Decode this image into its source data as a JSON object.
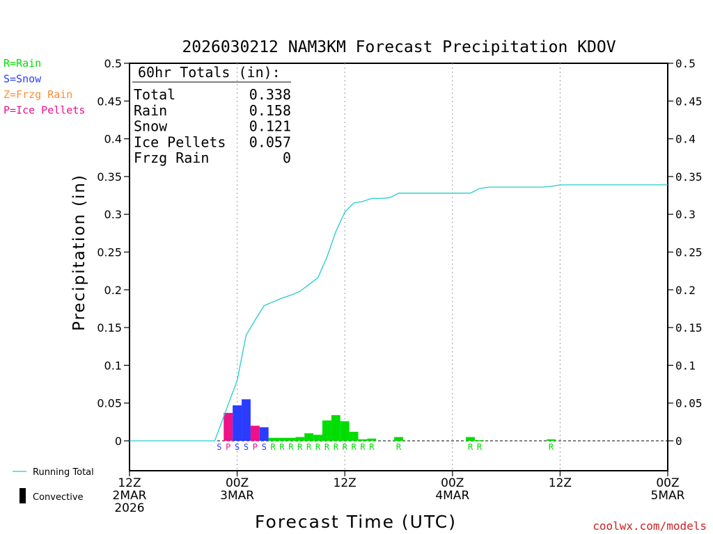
{
  "chart_data": {
    "type": "bar",
    "title": "2026030212 NAM3KM Forecast Precipitation KDOV",
    "xlabel": "Forecast Time (UTC)",
    "ylabel": "Precipitation (in)",
    "ylim": [
      -0.04,
      0.5
    ],
    "yticks": [
      0,
      0.05,
      0.1,
      0.15,
      0.2,
      0.25,
      0.3,
      0.35,
      0.4,
      0.45,
      0.5
    ],
    "ytick_labels": [
      "0",
      "0.05",
      "0.1",
      "0.15",
      "0.2",
      "0.25",
      "0.3",
      "0.35",
      "0.4",
      "0.45",
      "0.5"
    ],
    "xlim_hours": [
      0,
      60
    ],
    "xticks": [
      {
        "hour": 0,
        "lines": [
          "12Z",
          "2MAR",
          "2026"
        ]
      },
      {
        "hour": 12,
        "lines": [
          "00Z",
          "3MAR"
        ]
      },
      {
        "hour": 24,
        "lines": [
          "12Z"
        ]
      },
      {
        "hour": 36,
        "lines": [
          "00Z",
          "4MAR"
        ]
      },
      {
        "hour": 48,
        "lines": [
          "12Z"
        ]
      },
      {
        "hour": 60,
        "lines": [
          "00Z",
          "5MAR"
        ]
      }
    ],
    "grid_hours": [
      12,
      24,
      36,
      48
    ],
    "bar_width_hours": 1,
    "type_colors": {
      "R": "#00dd00",
      "S": "#2a3cff",
      "P": "#ee1188",
      "Z": "#ff8c33"
    },
    "bars": [
      {
        "hour": 11,
        "value": 0.037,
        "ptype": "P"
      },
      {
        "hour": 12,
        "value": 0.047,
        "ptype": "S"
      },
      {
        "hour": 13,
        "value": 0.055,
        "ptype": "S"
      },
      {
        "hour": 14,
        "value": 0.02,
        "ptype": "P"
      },
      {
        "hour": 15,
        "value": 0.018,
        "ptype": "S"
      },
      {
        "hour": 16,
        "value": 0.004,
        "ptype": "R"
      },
      {
        "hour": 17,
        "value": 0.004,
        "ptype": "R"
      },
      {
        "hour": 18,
        "value": 0.004,
        "ptype": "R"
      },
      {
        "hour": 19,
        "value": 0.005,
        "ptype": "R"
      },
      {
        "hour": 20,
        "value": 0.01,
        "ptype": "R"
      },
      {
        "hour": 21,
        "value": 0.008,
        "ptype": "R"
      },
      {
        "hour": 22,
        "value": 0.027,
        "ptype": "R"
      },
      {
        "hour": 23,
        "value": 0.034,
        "ptype": "R"
      },
      {
        "hour": 24,
        "value": 0.026,
        "ptype": "R"
      },
      {
        "hour": 25,
        "value": 0.012,
        "ptype": "R"
      },
      {
        "hour": 26,
        "value": 0.002,
        "ptype": "R"
      },
      {
        "hour": 27,
        "value": 0.003,
        "ptype": "R"
      },
      {
        "hour": 30,
        "value": 0.005,
        "ptype": "R"
      },
      {
        "hour": 38,
        "value": 0.005,
        "ptype": "R"
      },
      {
        "hour": 39,
        "value": 0.001,
        "ptype": "R"
      },
      {
        "hour": 47,
        "value": 0.002,
        "ptype": "R"
      }
    ],
    "ptype_markers": [
      {
        "hour": 10,
        "label": "S"
      },
      {
        "hour": 11,
        "label": "P"
      },
      {
        "hour": 12,
        "label": "S"
      },
      {
        "hour": 13,
        "label": "S"
      },
      {
        "hour": 14,
        "label": "P"
      },
      {
        "hour": 15,
        "label": "S"
      },
      {
        "hour": 16,
        "label": "R"
      },
      {
        "hour": 17,
        "label": "R"
      },
      {
        "hour": 18,
        "label": "R"
      },
      {
        "hour": 19,
        "label": "R"
      },
      {
        "hour": 20,
        "label": "R"
      },
      {
        "hour": 21,
        "label": "R"
      },
      {
        "hour": 22,
        "label": "R"
      },
      {
        "hour": 23,
        "label": "R"
      },
      {
        "hour": 24,
        "label": "R"
      },
      {
        "hour": 25,
        "label": "R"
      },
      {
        "hour": 26,
        "label": "R"
      },
      {
        "hour": 27,
        "label": "R"
      },
      {
        "hour": 30,
        "label": "R"
      },
      {
        "hour": 38,
        "label": "R"
      },
      {
        "hour": 39,
        "label": "R"
      },
      {
        "hour": 47,
        "label": "R"
      }
    ],
    "running_total": {
      "name": "Running Total",
      "color": "#22cccc",
      "x": [
        0,
        9.5,
        12,
        13,
        14,
        15,
        16,
        17,
        18,
        19,
        20,
        21,
        22,
        23,
        24,
        25,
        26,
        27,
        28,
        29,
        30,
        31,
        32,
        33,
        34,
        35,
        36,
        37,
        38,
        39,
        40,
        41,
        42,
        43,
        44,
        45,
        46,
        47,
        48,
        49,
        50,
        55,
        60
      ],
      "y": [
        0,
        0,
        0.08,
        0.14,
        0.16,
        0.179,
        0.184,
        0.189,
        0.193,
        0.198,
        0.207,
        0.216,
        0.243,
        0.277,
        0.303,
        0.315,
        0.317,
        0.321,
        0.321,
        0.322,
        0.328,
        0.328,
        0.328,
        0.328,
        0.328,
        0.328,
        0.328,
        0.328,
        0.328,
        0.334,
        0.336,
        0.336,
        0.336,
        0.336,
        0.336,
        0.336,
        0.336,
        0.337,
        0.339,
        0.339,
        0.339,
        0.339,
        0.339
      ]
    },
    "totals_box": {
      "heading": "60hr Totals (in):",
      "rows": [
        {
          "label": "Total",
          "value": "0.338"
        },
        {
          "label": "Rain",
          "value": "0.158"
        },
        {
          "label": "Snow",
          "value": "0.121"
        },
        {
          "label": "Ice Pellets",
          "value": "0.057"
        },
        {
          "label": "Frzg Rain",
          "value": "0"
        }
      ]
    },
    "type_legend": [
      {
        "text": "R=Rain",
        "color": "#00dd00"
      },
      {
        "text": "S=Snow",
        "color": "#2a3cff"
      },
      {
        "text": "Z=Frzg Rain",
        "color": "#ff8c33"
      },
      {
        "text": "P=Ice Pellets",
        "color": "#ee1188"
      }
    ],
    "line_legend": [
      {
        "text": "Running Total",
        "symbol": "line",
        "color": "#22cccc"
      },
      {
        "text": "Convective",
        "symbol": "bar",
        "color": "#000000"
      }
    ],
    "credit": "coolwx.com/models",
    "credit_color": "#cc2222"
  }
}
